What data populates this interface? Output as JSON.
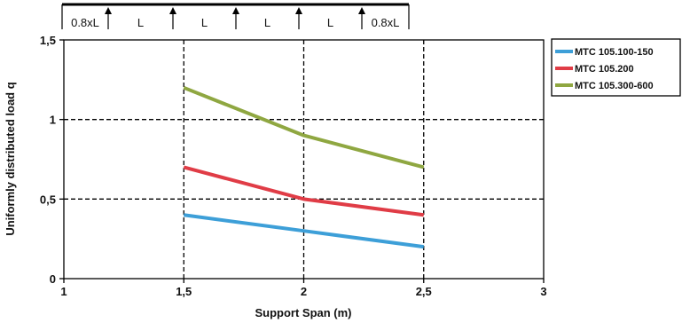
{
  "chart_data": {
    "type": "line",
    "title": "",
    "xlabel": "Support Span (m)",
    "ylabel": "Uniformly distributed load q",
    "xlim": [
      1,
      3
    ],
    "ylim": [
      0,
      1.5
    ],
    "x_ticks": [
      1,
      1.5,
      2,
      2.5,
      3
    ],
    "x_tick_labels": [
      "1",
      "1,5",
      "2",
      "2,5",
      "3"
    ],
    "y_ticks": [
      0,
      0.5,
      1,
      1.5
    ],
    "y_tick_labels": [
      "0",
      "0,5",
      "1",
      "1,5"
    ],
    "grid": true,
    "legend_position": "right",
    "series": [
      {
        "name": "MTC 105.100-150",
        "color": "#3d9fd8",
        "x": [
          1.5,
          2,
          2.5
        ],
        "values": [
          0.4,
          0.3,
          0.2
        ]
      },
      {
        "name": "MTC 105.200",
        "color": "#e03c46",
        "x": [
          1.5,
          2,
          2.5
        ],
        "values": [
          0.7,
          0.5,
          0.4
        ]
      },
      {
        "name": "MTC 105.300-600",
        "color": "#8fa741",
        "x": [
          1.5,
          2,
          2.5
        ],
        "values": [
          1.2,
          0.9,
          0.7
        ]
      }
    ]
  },
  "beam_diagram": {
    "segment_labels": [
      "0.8xL",
      "L",
      "L",
      "L",
      "L",
      "0.8xL"
    ]
  }
}
